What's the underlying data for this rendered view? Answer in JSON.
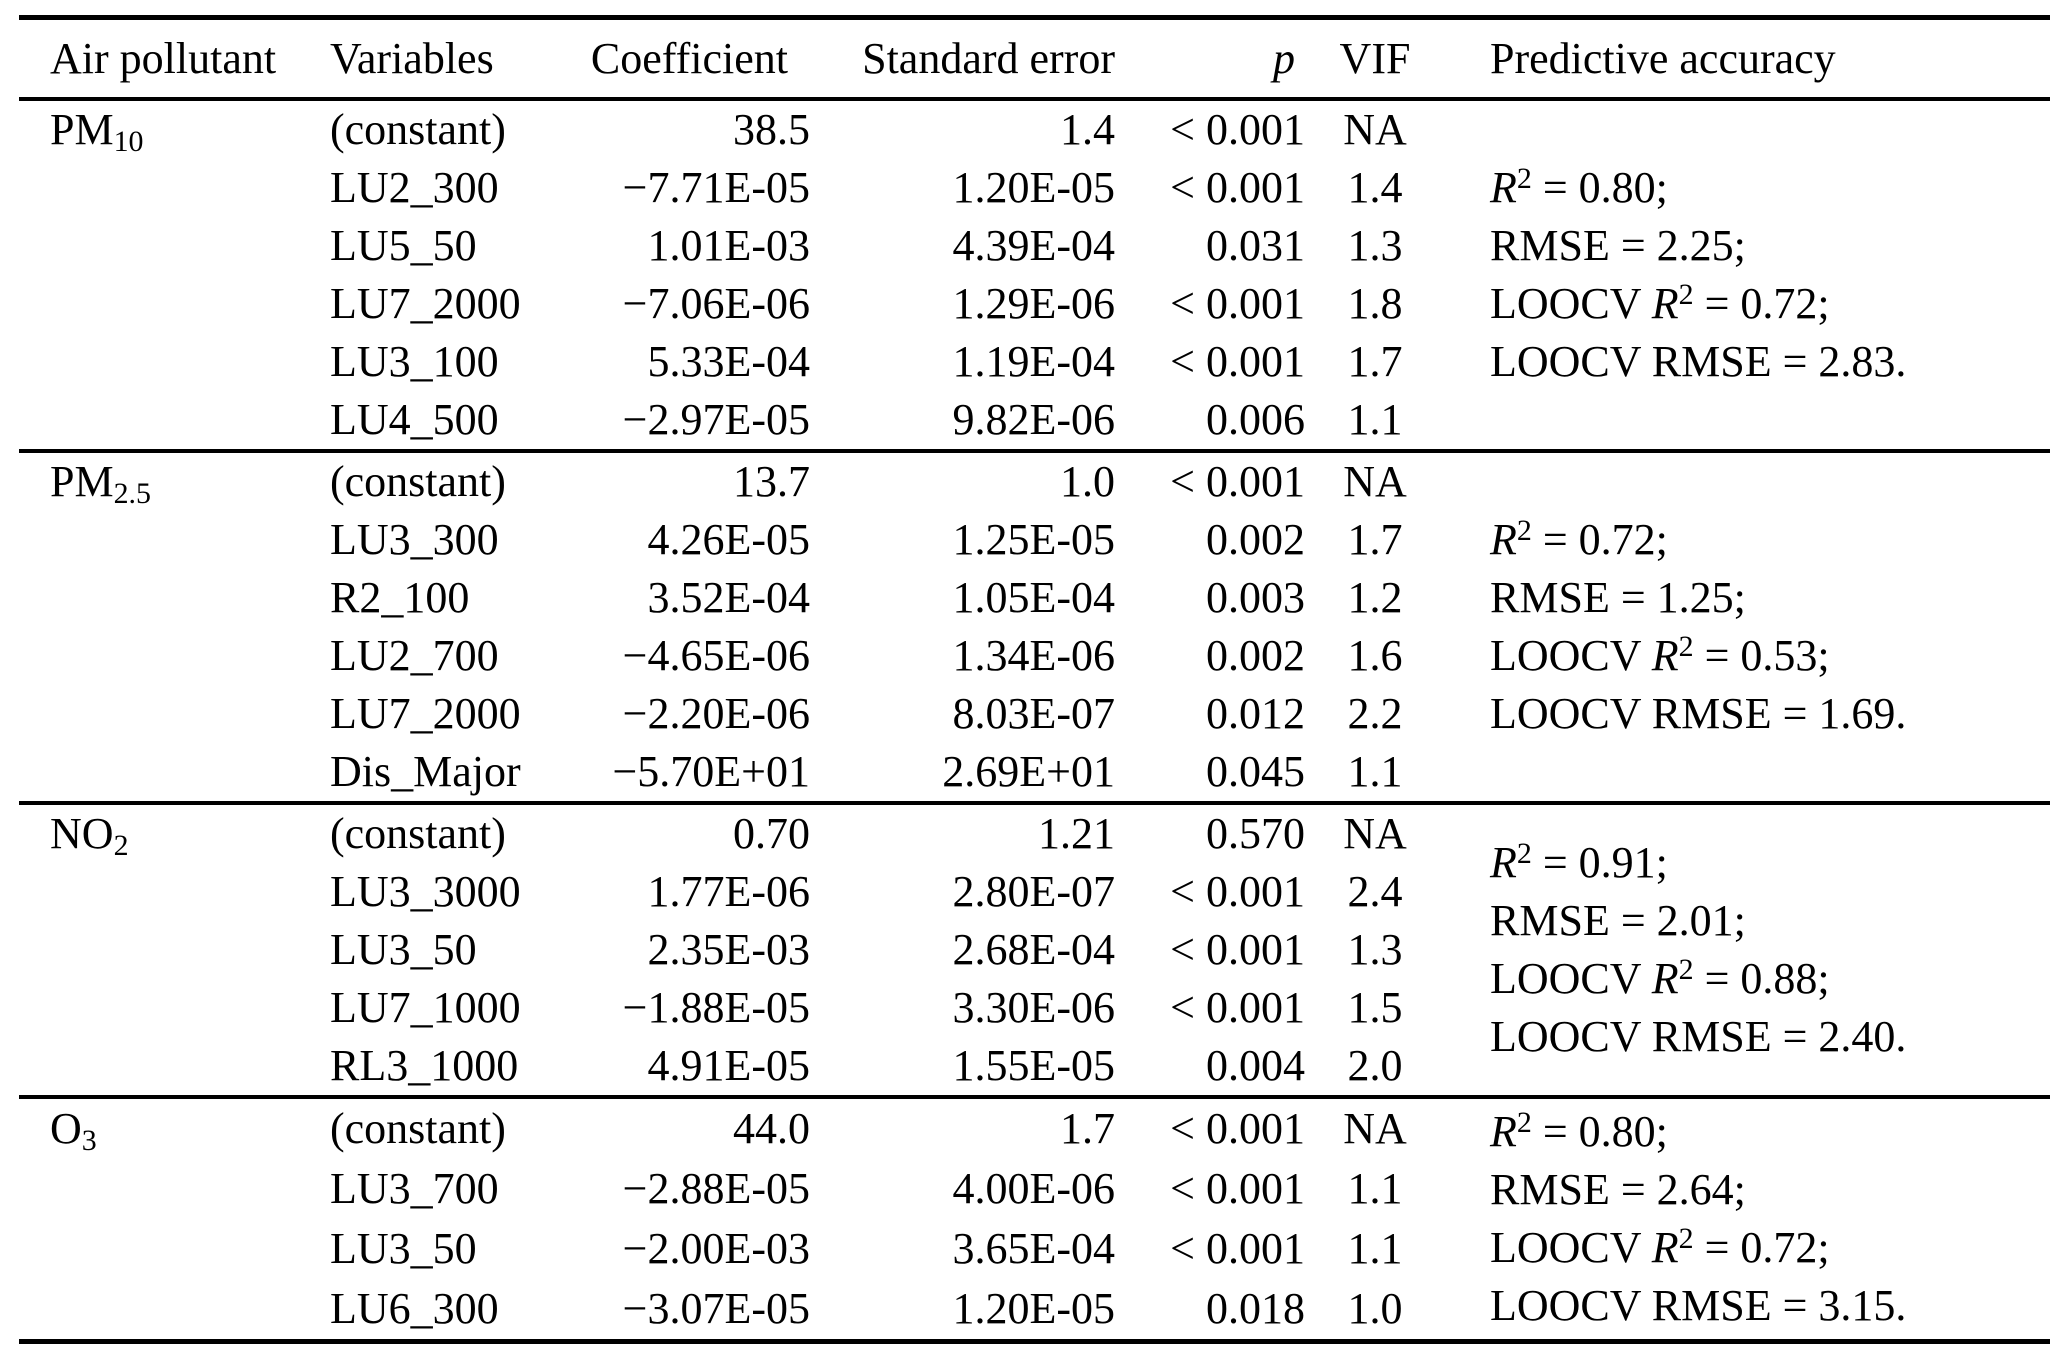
{
  "table": {
    "column_headers": [
      {
        "label": "Air pollutant",
        "align": "left",
        "italic": false
      },
      {
        "label": "Variables",
        "align": "left",
        "italic": false
      },
      {
        "label": "Coefficient",
        "align": "right",
        "italic": false
      },
      {
        "label": "Standard error",
        "align": "right",
        "italic": false
      },
      {
        "label": "p",
        "align": "right",
        "italic": true
      },
      {
        "label": "VIF",
        "align": "center",
        "italic": false
      },
      {
        "label": "Predictive accuracy",
        "align": "left",
        "italic": false
      }
    ],
    "sections": [
      {
        "pollutant": "PM_{10}",
        "rows": [
          {
            "variable": "(constant)",
            "coefficient": "38.5",
            "std_error": "1.4",
            "p": "< 0.001",
            "vif": "NA"
          },
          {
            "variable": "LU2_300",
            "coefficient": "−7.71E-05",
            "std_error": "1.20E-05",
            "p": "< 0.001",
            "vif": "1.4"
          },
          {
            "variable": "LU5_50",
            "coefficient": "1.01E-03",
            "std_error": "4.39E-04",
            "p": "0.031",
            "vif": "1.3"
          },
          {
            "variable": "LU7_2000",
            "coefficient": "−7.06E-06",
            "std_error": "1.29E-06",
            "p": "< 0.001",
            "vif": "1.8"
          },
          {
            "variable": "LU3_100",
            "coefficient": "5.33E-04",
            "std_error": "1.19E-04",
            "p": "< 0.001",
            "vif": "1.7"
          },
          {
            "variable": "LU4_500",
            "coefficient": "−2.97E-05",
            "std_error": "9.82E-06",
            "p": "0.006",
            "vif": "1.1"
          }
        ],
        "predictive_accuracy": [
          "*R*^{2} = 0.80;",
          "RMSE = 2.25;",
          "LOOCV *R*^{2} = 0.72;",
          "LOOCV RMSE = 2.83."
        ]
      },
      {
        "pollutant": "PM_{2.5}",
        "rows": [
          {
            "variable": "(constant)",
            "coefficient": "13.7",
            "std_error": "1.0",
            "p": "< 0.001",
            "vif": "NA"
          },
          {
            "variable": "LU3_300",
            "coefficient": "4.26E-05",
            "std_error": "1.25E-05",
            "p": "0.002",
            "vif": "1.7"
          },
          {
            "variable": "R2_100",
            "coefficient": "3.52E-04",
            "std_error": "1.05E-04",
            "p": "0.003",
            "vif": "1.2"
          },
          {
            "variable": "LU2_700",
            "coefficient": "−4.65E-06",
            "std_error": "1.34E-06",
            "p": "0.002",
            "vif": "1.6"
          },
          {
            "variable": "LU7_2000",
            "coefficient": "−2.20E-06",
            "std_error": "8.03E-07",
            "p": "0.012",
            "vif": "2.2"
          },
          {
            "variable": "Dis_Major",
            "coefficient": "−5.70E+01",
            "std_error": "2.69E+01",
            "p": "0.045",
            "vif": "1.1"
          }
        ],
        "predictive_accuracy": [
          "*R*^{2} = 0.72;",
          "RMSE = 1.25;",
          "LOOCV *R*^{2} = 0.53;",
          "LOOCV RMSE = 1.69."
        ]
      },
      {
        "pollutant": "NO_{2}",
        "rows": [
          {
            "variable": "(constant)",
            "coefficient": "0.70",
            "std_error": "1.21",
            "p": "0.570",
            "vif": "NA"
          },
          {
            "variable": "LU3_3000",
            "coefficient": "1.77E-06",
            "std_error": "2.80E-07",
            "p": "< 0.001",
            "vif": "2.4"
          },
          {
            "variable": "LU3_50",
            "coefficient": "2.35E-03",
            "std_error": "2.68E-04",
            "p": "< 0.001",
            "vif": "1.3"
          },
          {
            "variable": "LU7_1000",
            "coefficient": "−1.88E-05",
            "std_error": "3.30E-06",
            "p": "< 0.001",
            "vif": "1.5"
          },
          {
            "variable": "RL3_1000",
            "coefficient": "4.91E-05",
            "std_error": "1.55E-05",
            "p": "0.004",
            "vif": "2.0"
          }
        ],
        "predictive_accuracy": [
          "*R*^{2} = 0.91;",
          "RMSE = 2.01;",
          "LOOCV *R*^{2} = 0.88;",
          "LOOCV RMSE = 2.40."
        ]
      },
      {
        "pollutant": "O_{3}",
        "rows": [
          {
            "variable": "(constant)",
            "coefficient": "44.0",
            "std_error": "1.7",
            "p": "< 0.001",
            "vif": "NA"
          },
          {
            "variable": "LU3_700",
            "coefficient": "−2.88E-05",
            "std_error": "4.00E-06",
            "p": "< 0.001",
            "vif": "1.1"
          },
          {
            "variable": "LU3_50",
            "coefficient": "−2.00E-03",
            "std_error": "3.65E-04",
            "p": "< 0.001",
            "vif": "1.1"
          },
          {
            "variable": "LU6_300",
            "coefficient": "−3.07E-05",
            "std_error": "1.20E-05",
            "p": "0.018",
            "vif": "1.0"
          }
        ],
        "predictive_accuracy": [
          "*R*^{2} = 0.80;",
          "RMSE = 2.64;",
          "LOOCV *R*^{2} = 0.72;",
          "LOOCV RMSE = 3.15."
        ]
      }
    ]
  }
}
